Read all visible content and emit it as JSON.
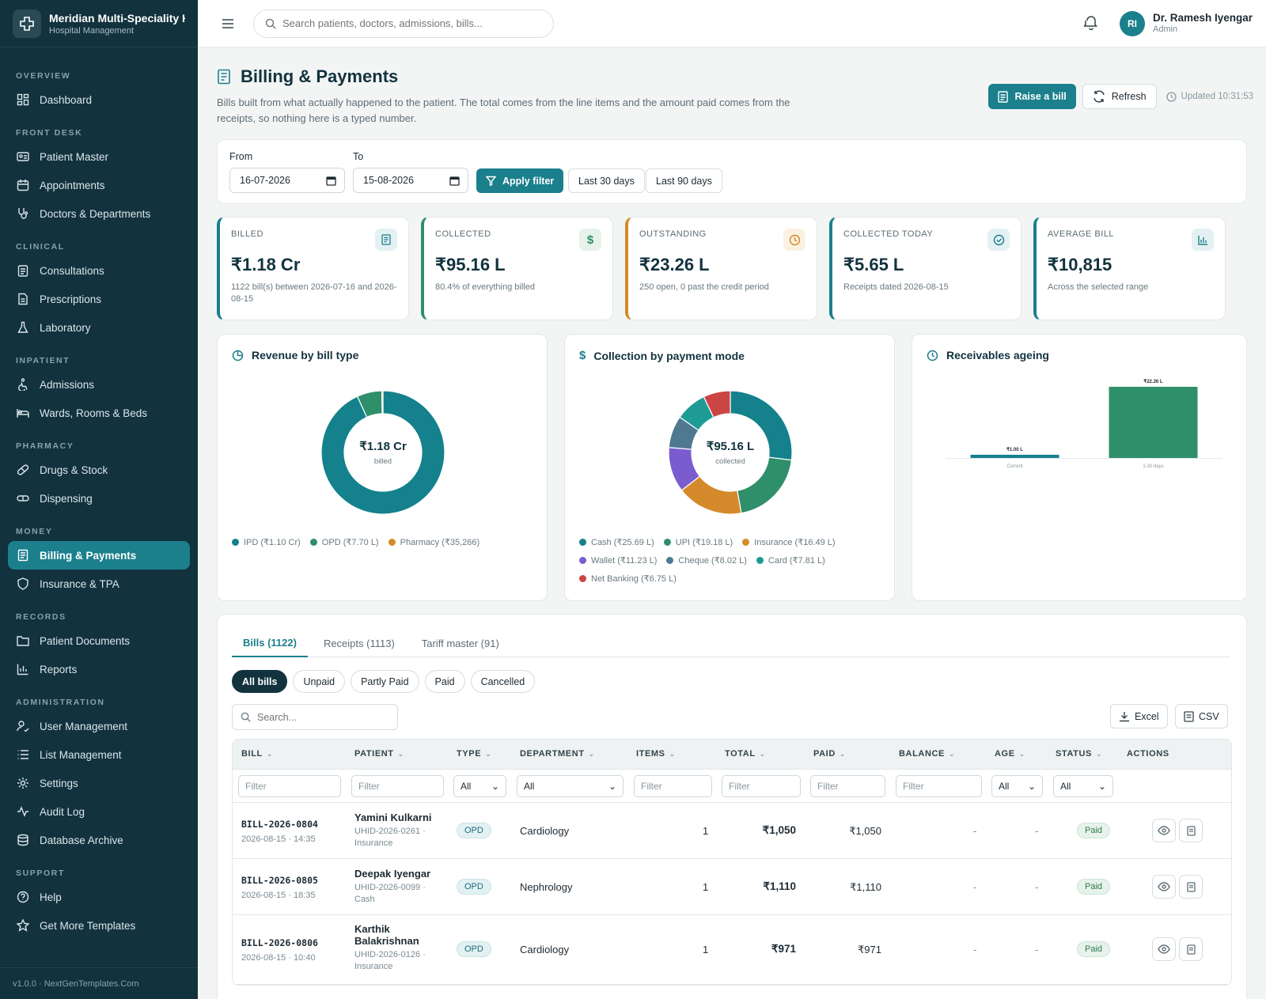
{
  "brand": {
    "name": "Meridian Multi-Speciality Hospital",
    "sub": "Hospital Management"
  },
  "nav": {
    "overview": "OVERVIEW",
    "dashboard": "Dashboard",
    "front_desk": "FRONT DESK",
    "patient_master": "Patient Master",
    "appointments": "Appointments",
    "doctors": "Doctors & Departments",
    "clinical": "CLINICAL",
    "consultations": "Consultations",
    "prescriptions": "Prescriptions",
    "laboratory": "Laboratory",
    "inpatient": "INPATIENT",
    "admissions": "Admissions",
    "wards": "Wards, Rooms & Beds",
    "pharmacy": "PHARMACY",
    "drugs": "Drugs & Stock",
    "dispensing": "Dispensing",
    "money": "MONEY",
    "billing": "Billing & Payments",
    "insurance": "Insurance & TPA",
    "records": "RECORDS",
    "documents": "Patient Documents",
    "reports": "Reports",
    "administration": "ADMINISTRATION",
    "users": "User Management",
    "lists": "List Management",
    "settings": "Settings",
    "audit": "Audit Log",
    "archive": "Database Archive",
    "support": "SUPPORT",
    "help": "Help",
    "templates": "Get More Templates",
    "footer": "v1.0.0 · NextGenTemplates.Com"
  },
  "topbar": {
    "search_placeholder": "Search patients, doctors, admissions, bills...",
    "avatar": "RI",
    "user_name": "Dr. Ramesh Iyengar",
    "user_role": "Admin"
  },
  "page": {
    "title": "Billing & Payments",
    "desc": "Bills built from what actually happened to the patient. The total comes from the line items and the amount paid comes from the receipts, so nothing here is a typed number.",
    "raise": "Raise a bill",
    "refresh": "Refresh",
    "updated": "Updated 10:31:53"
  },
  "filter": {
    "from_label": "From",
    "from": "16-07-2026",
    "to_label": "To",
    "to": "15-08-2026",
    "apply": "Apply filter",
    "last30": "Last 30 days",
    "last90": "Last 90 days"
  },
  "kpis": [
    {
      "label": "BILLED",
      "value": "₹1.18 Cr",
      "sub": "1122 bill(s) between 2026-07-16 and 2026-08-15",
      "color": "#1b7f8c"
    },
    {
      "label": "COLLECTED",
      "value": "₹95.16 L",
      "sub": "80.4% of everything billed",
      "color": "#2e8f6a"
    },
    {
      "label": "OUTSTANDING",
      "value": "₹23.26 L",
      "sub": "250 open, 0 past the credit period",
      "color": "#d48a2b"
    },
    {
      "label": "COLLECTED TODAY",
      "value": "₹5.65 L",
      "sub": "Receipts dated 2026-08-15",
      "color": "#1b7f8c"
    },
    {
      "label": "AVERAGE BILL",
      "value": "₹10,815",
      "sub": "Across the selected range",
      "color": "#1b7f8c"
    }
  ],
  "charts": {
    "revenue_title": "Revenue by bill type",
    "revenue_center": "₹1.18 Cr",
    "revenue_center_sub": "billed",
    "collection_title": "Collection by payment mode",
    "collection_center": "₹95.16 L",
    "collection_center_sub": "collected",
    "ageing_title": "Receivables ageing"
  },
  "chart_data": [
    {
      "type": "pie",
      "title": "Revenue by bill type",
      "categories": [
        "IPD (₹1.10 Cr)",
        "OPD (₹7.70 L)",
        "Pharmacy (₹35,266)"
      ],
      "values": [
        110,
        7.7,
        0.35266
      ],
      "colors": [
        "#14818c",
        "#2e8f6a",
        "#d48a2b"
      ]
    },
    {
      "type": "pie",
      "title": "Collection by payment mode",
      "categories": [
        "Cash (₹25.69 L)",
        "UPI (₹19.18 L)",
        "Insurance (₹16.49 L)",
        "Wallet (₹11.23 L)",
        "Cheque (₹8.02 L)",
        "Card (₹7.81 L)",
        "Net Banking (₹6.75 L)"
      ],
      "values": [
        25.69,
        19.18,
        16.49,
        11.23,
        8.02,
        7.81,
        6.75
      ],
      "colors": [
        "#14818c",
        "#2e8f6a",
        "#d48a2b",
        "#7a5ccf",
        "#4f7891",
        "#1f9b95",
        "#cc4545"
      ]
    },
    {
      "type": "bar",
      "title": "Receivables ageing",
      "categories": [
        "Current",
        "1-30 days"
      ],
      "values": [
        1.0,
        22.26
      ],
      "labels": [
        "₹1.00 L",
        "₹22.26 L"
      ],
      "colors": [
        "#14818c",
        "#2e8f6a"
      ]
    }
  ],
  "tabs": {
    "bills": "Bills (1122)",
    "receipts": "Receipts (1113)",
    "tariff": "Tariff master (91)"
  },
  "pills": {
    "all": "All bills",
    "unpaid": "Unpaid",
    "partly": "Partly Paid",
    "paid": "Paid",
    "cancelled": "Cancelled"
  },
  "table": {
    "search_placeholder": "Search...",
    "excel": "Excel",
    "csv": "CSV",
    "headers": {
      "bill": "BILL",
      "patient": "PATIENT",
      "type": "TYPE",
      "dept": "DEPARTMENT",
      "items": "ITEMS",
      "total": "TOTAL",
      "paid": "PAID",
      "balance": "BALANCE",
      "age": "AGE",
      "status": "STATUS",
      "actions": "ACTIONS"
    },
    "filter_placeholder": "Filter",
    "all": "All",
    "rows": [
      {
        "bill": "BILL-2026-0804",
        "date": "2026-08-15 · 14:35",
        "patient": "Yamini Kulkarni",
        "uhid": "UHID-2026-0261 ·",
        "pay": "Insurance",
        "type": "OPD",
        "dept": "Cardiology",
        "items": "1",
        "total": "₹1,050",
        "paid": "₹1,050",
        "balance": "-",
        "age": "-",
        "status": "Paid"
      },
      {
        "bill": "BILL-2026-0805",
        "date": "2026-08-15 · 18:35",
        "patient": "Deepak Iyengar",
        "uhid": "UHID-2026-0099 ·",
        "pay": "Cash",
        "type": "OPD",
        "dept": "Nephrology",
        "items": "1",
        "total": "₹1,110",
        "paid": "₹1,110",
        "balance": "-",
        "age": "-",
        "status": "Paid"
      },
      {
        "bill": "BILL-2026-0806",
        "date": "2026-08-15 · 10:40",
        "patient": "Karthik Balakrishnan",
        "uhid": "UHID-2026-0126 ·",
        "pay": "Insurance",
        "type": "OPD",
        "dept": "Cardiology",
        "items": "1",
        "total": "₹971",
        "paid": "₹971",
        "balance": "-",
        "age": "-",
        "status": "Paid"
      }
    ]
  }
}
